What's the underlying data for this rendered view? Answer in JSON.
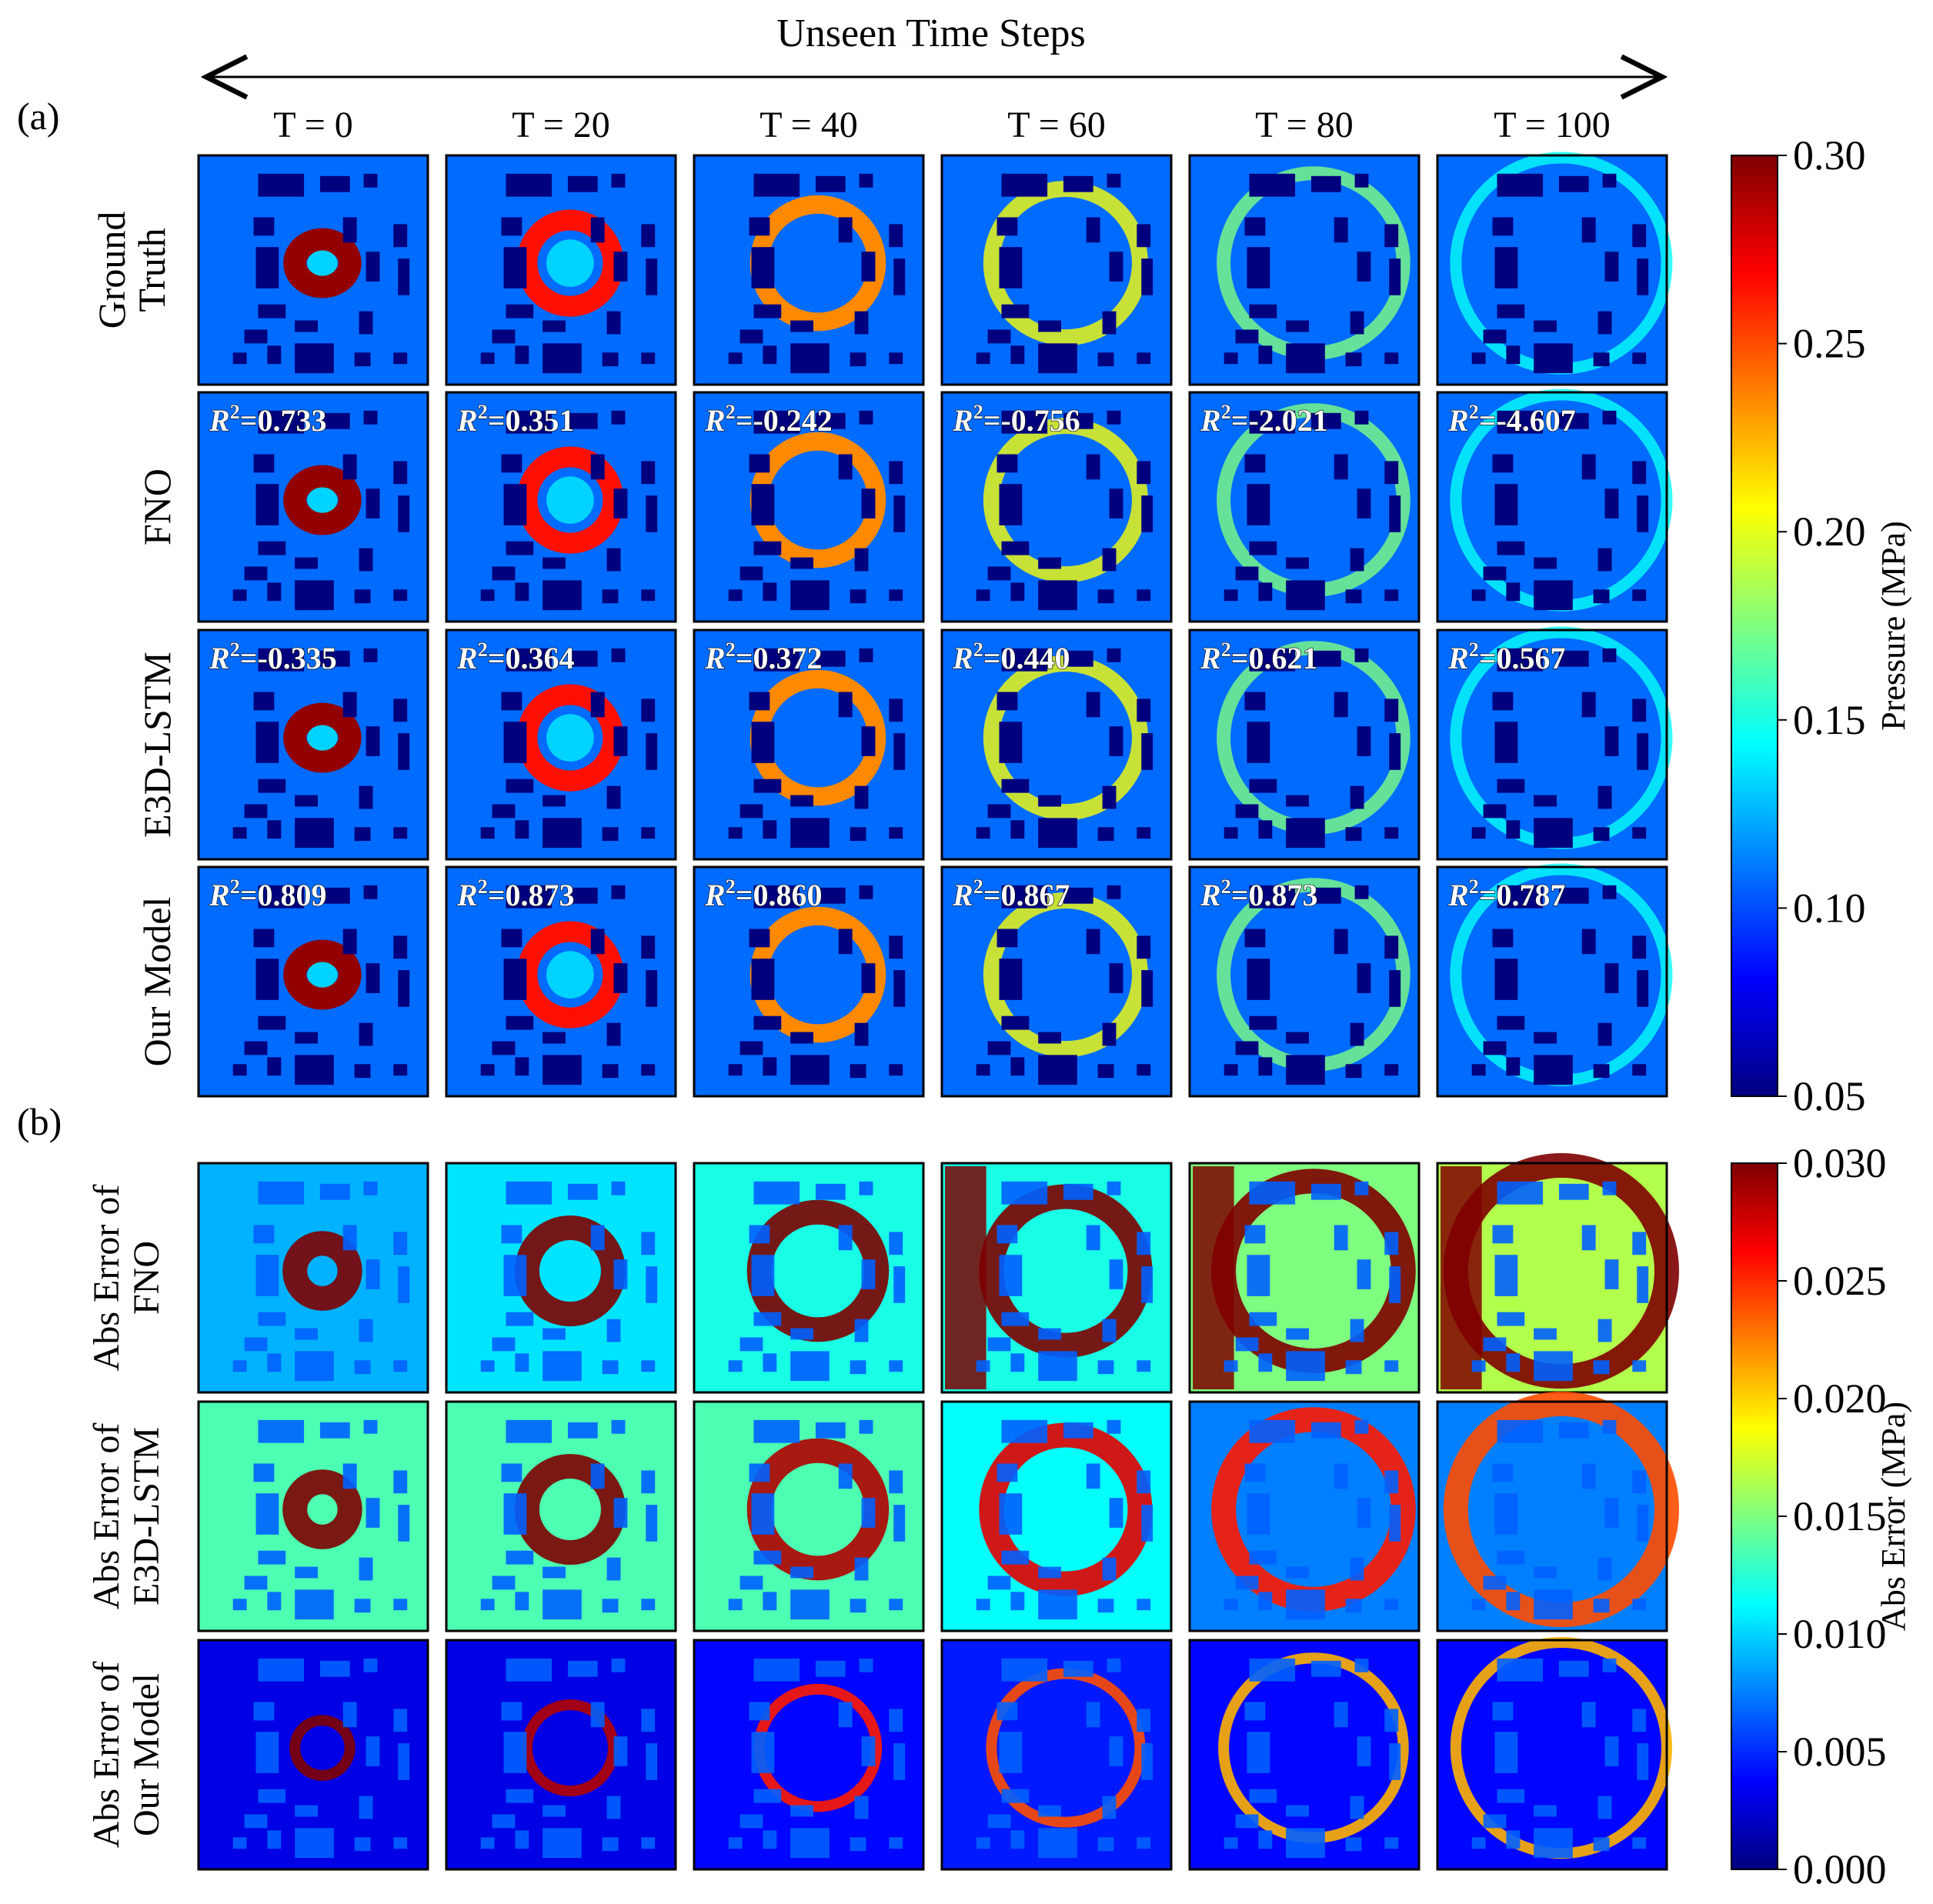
{
  "figure": {
    "title": "Unseen Time Steps",
    "panel_a_label": "(a)",
    "panel_b_label": "(b)"
  },
  "chart_data": [
    {
      "type": "heatmap",
      "panel": "(a)",
      "columns": [
        "T = 0",
        "T = 20",
        "T = 40",
        "T = 60",
        "T = 80",
        "T = 100"
      ],
      "time_steps": [
        0,
        20,
        40,
        60,
        80,
        100
      ],
      "rows": [
        {
          "label_lines": [
            "Ground",
            "Truth"
          ],
          "r2_prefix": "",
          "r2": []
        },
        {
          "label_lines": [
            "FNO"
          ],
          "r2_prefix": "R",
          "r2": [
            "=0.733",
            "=0.351",
            "=-0.242",
            "=-0.756",
            "=-2.021",
            "=-4.607"
          ]
        },
        {
          "label_lines": [
            "E3D-LSTM"
          ],
          "r2_prefix": "R",
          "r2": [
            "=-0.335",
            "=0.364",
            "=0.372",
            "=0.440",
            "=0.621",
            "=0.567"
          ]
        },
        {
          "label_lines": [
            "Our Model"
          ],
          "r2_prefix": "R",
          "r2": [
            "=0.809",
            "=0.873",
            "=0.860",
            "=0.867",
            "=0.873",
            "=0.787"
          ]
        }
      ],
      "colorbar": {
        "label": "Pressure (MPa)",
        "colormap": "jet",
        "range": [
          0.05,
          0.3
        ],
        "ticks": [
          "0.30",
          "0.25",
          "0.20",
          "0.15",
          "0.10",
          "0.05"
        ]
      }
    },
    {
      "type": "heatmap",
      "panel": "(b)",
      "columns": [
        "T = 0",
        "T = 20",
        "T = 40",
        "T = 60",
        "T = 80",
        "T = 100"
      ],
      "rows": [
        {
          "label_lines": [
            "Abs Error of",
            "FNO"
          ]
        },
        {
          "label_lines": [
            "Abs Error of",
            "E3D-LSTM"
          ]
        },
        {
          "label_lines": [
            "Abs Error of",
            "Our Model"
          ]
        }
      ],
      "colorbar": {
        "label": "Abs Error (MPa)",
        "colormap": "jet",
        "range": [
          0.0,
          0.03
        ],
        "ticks": [
          "0.030",
          "0.025",
          "0.020",
          "0.015",
          "0.010",
          "0.005",
          "0.000"
        ]
      }
    }
  ],
  "colors": {
    "jet_stops": [
      "#00007f",
      "#0000ff",
      "#007fff",
      "#00ffff",
      "#7fff7f",
      "#ffff00",
      "#ff7f00",
      "#ff0000",
      "#7f0000"
    ],
    "obstacle": "#00007f",
    "background_field": "#1e64ff",
    "frame": "#000000"
  }
}
